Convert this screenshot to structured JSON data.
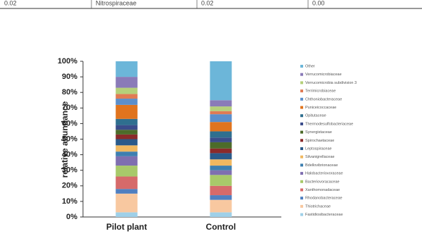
{
  "table_fragment": [
    "0.02",
    "Nitrospiraceae",
    "0.02",
    "0.00"
  ],
  "chart_data": {
    "type": "stacked-bar",
    "y_label": "relative abundance",
    "categories": [
      "Pilot plant",
      "Control"
    ],
    "ylim": [
      0,
      100
    ],
    "yticks": [
      {
        "value": 0,
        "label": "0%"
      },
      {
        "value": 10,
        "label": "10%"
      },
      {
        "value": 20,
        "label": "20%"
      },
      {
        "value": 30,
        "label": "30%"
      },
      {
        "value": 40,
        "label": "40%"
      },
      {
        "value": 50,
        "label": "50%"
      },
      {
        "value": 60,
        "label": "60%"
      },
      {
        "value": 70,
        "label": "70%"
      },
      {
        "value": 80,
        "label": "80%"
      },
      {
        "value": 90,
        "label": "90%"
      },
      {
        "value": 100,
        "label": "100%"
      }
    ],
    "series": [
      {
        "name": "Fastidiosibacteraceae",
        "color": "#9fd0e8",
        "values": [
          3,
          3
        ]
      },
      {
        "name": "Thiotrichaceae",
        "color": "#f8c8a0",
        "values": [
          12,
          8
        ]
      },
      {
        "name": "Rhodanobacteraceae",
        "color": "#4f7fc0",
        "values": [
          3,
          3
        ]
      },
      {
        "name": "Xanthomonadaceae",
        "color": "#d66a6a",
        "values": [
          8,
          6
        ]
      },
      {
        "name": "Bacteriovoracaceae",
        "color": "#a8c96a",
        "values": [
          7,
          7
        ]
      },
      {
        "name": "Halobacteriovoraceae",
        "color": "#7f6fb0",
        "values": [
          6,
          3
        ]
      },
      {
        "name": "Bdellovibrionaceae",
        "color": "#3e7fb0",
        "values": [
          3,
          3
        ]
      },
      {
        "name": "Silvanigrellaceae",
        "color": "#f0b860",
        "values": [
          4,
          4
        ]
      },
      {
        "name": "Leptospiraceae",
        "color": "#2a5a8a",
        "values": [
          4,
          4
        ]
      },
      {
        "name": "Spirochaetaceae",
        "color": "#8b2a2a",
        "values": [
          3,
          3
        ]
      },
      {
        "name": "Synergistaceae",
        "color": "#4c6b2a",
        "values": [
          3,
          4
        ]
      },
      {
        "name": "Thermodesulfobacteriaceae",
        "color": "#3a4c8a",
        "values": [
          3,
          3
        ]
      },
      {
        "name": "Opitutaceae",
        "color": "#2f6f8f",
        "values": [
          4,
          4
        ]
      },
      {
        "name": "Puniceicoccaceae",
        "color": "#e0741e",
        "values": [
          9,
          6
        ]
      },
      {
        "name": "Chthoniobacteraceae",
        "color": "#5b8fcb",
        "values": [
          4,
          5
        ]
      },
      {
        "name": "Terrimicrobiaceae",
        "color": "#e07b54",
        "values": [
          3,
          2
        ]
      },
      {
        "name": "Verrucomicrobia subdivision 3",
        "color": "#b5d07a",
        "values": [
          4,
          3
        ]
      },
      {
        "name": "Verrucomicrobiaceae",
        "color": "#8a7bb8",
        "values": [
          7,
          4
        ]
      },
      {
        "name": "Other",
        "color": "#6cb6d9",
        "values": [
          10,
          25
        ]
      }
    ]
  }
}
